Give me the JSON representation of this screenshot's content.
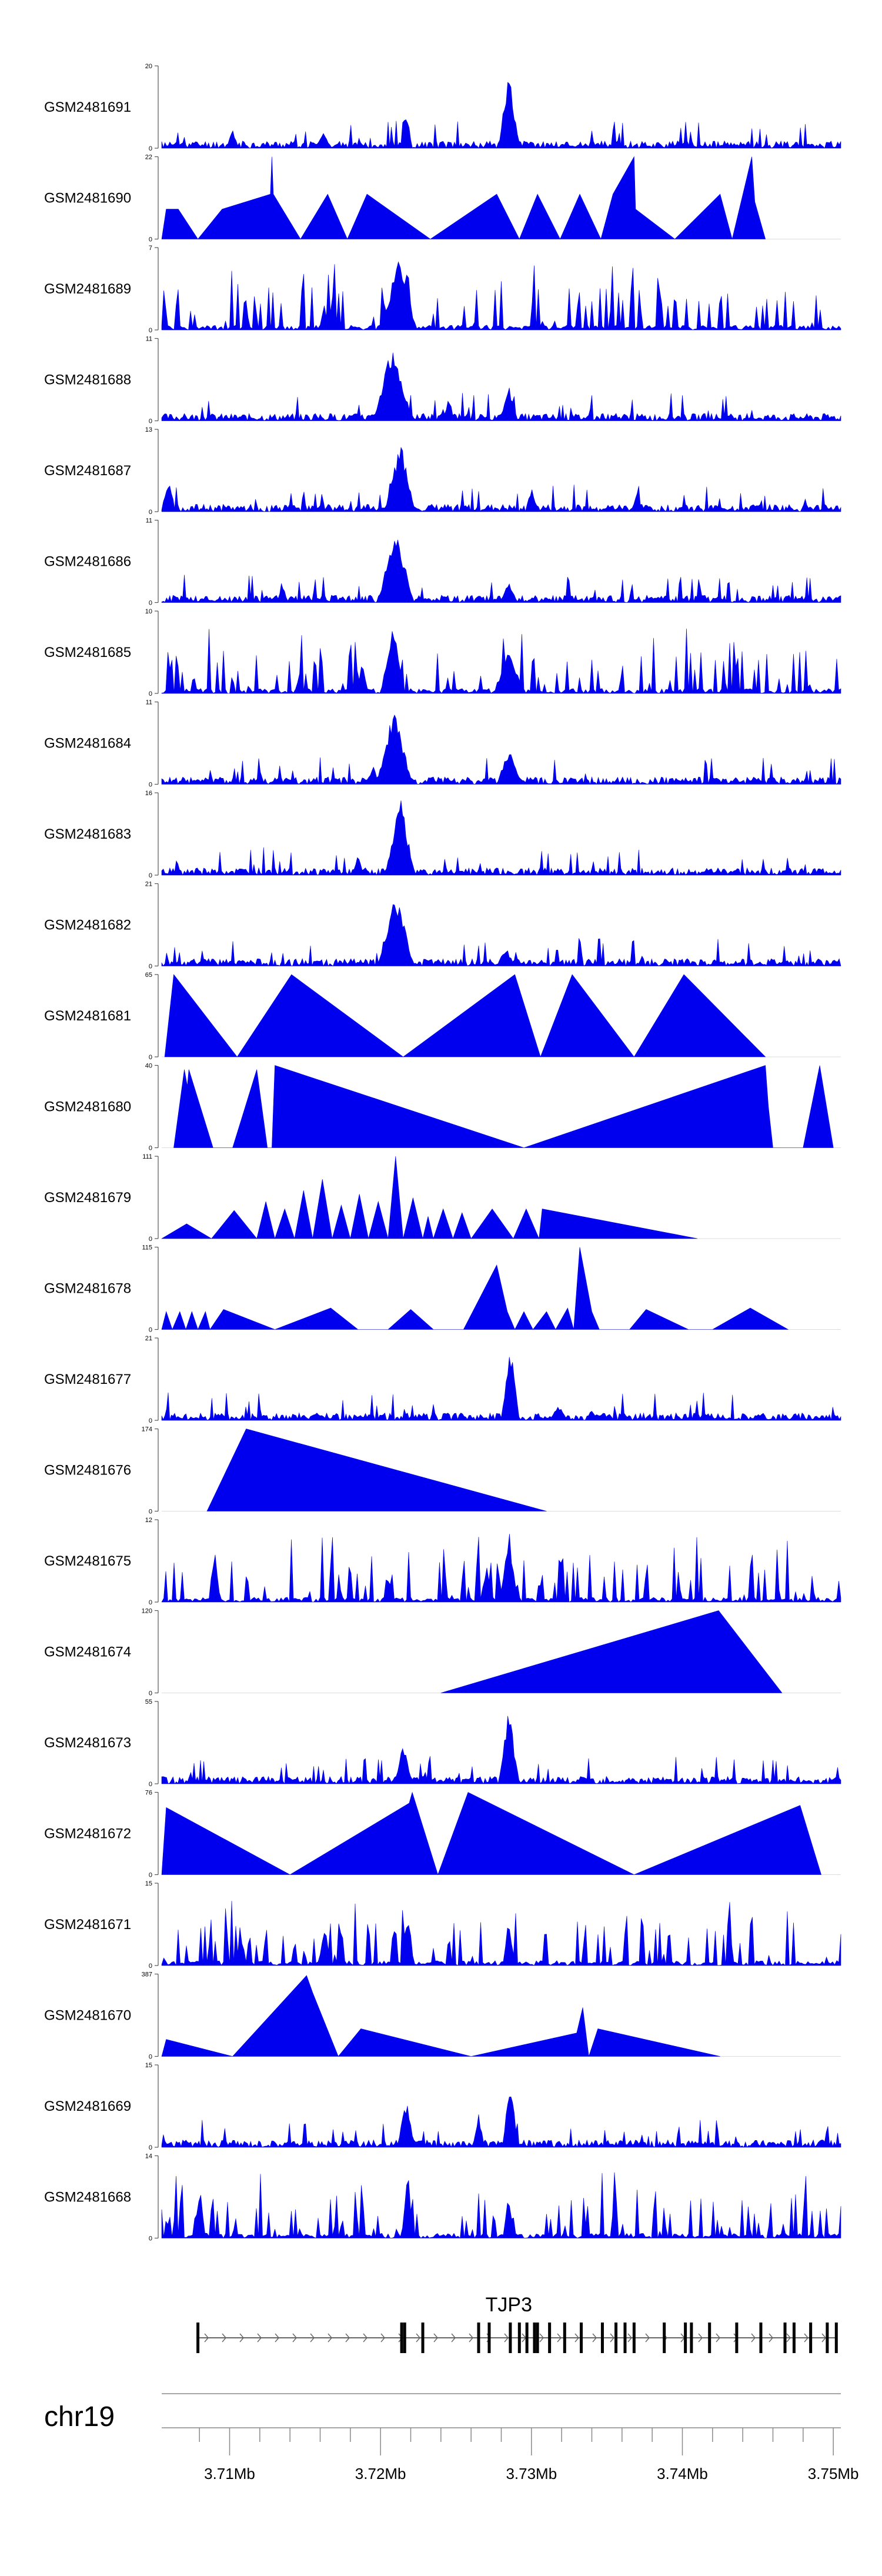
{
  "chart_data": {
    "type": "area",
    "chromosome": "chr19",
    "fill_color": "#0000ee",
    "axis_color": "#555555",
    "x_range_mb": [
      3.7055,
      3.7505
    ],
    "x_ticks_major": [
      3.71,
      3.72,
      3.73,
      3.74,
      3.75
    ],
    "x_tick_labels": [
      "3.71Mb",
      "3.72Mb",
      "3.73Mb",
      "3.74Mb",
      "3.75Mb"
    ],
    "x_ticks_minor": [
      3.708,
      3.712,
      3.714,
      3.716,
      3.718,
      3.722,
      3.724,
      3.726,
      3.728,
      3.732,
      3.734,
      3.736,
      3.738,
      3.742,
      3.744,
      3.746,
      3.748
    ],
    "gene": {
      "name": "TJP3",
      "start_mb": 3.7078,
      "end_mb": 3.7502,
      "strand": "+",
      "exons_mb": [
        3.7079,
        3.7214,
        3.7216,
        3.7228,
        3.7265,
        3.7272,
        3.7286,
        3.7292,
        3.7297,
        3.7302,
        3.7304,
        3.7312,
        3.7322,
        3.7333,
        3.7347,
        3.7356,
        3.7362,
        3.7368,
        3.7388,
        3.7402,
        3.7406,
        3.7418,
        3.7436,
        3.7452,
        3.7468,
        3.7474,
        3.7485,
        3.7496,
        3.7502
      ]
    },
    "series": [
      {
        "name": "GSM2481691",
        "ymax": 20,
        "style": "dense",
        "seed": 11,
        "peaks": [
          [
            3.7285,
            19,
            0.0007
          ],
          [
            3.7217,
            10,
            0.0004
          ],
          [
            3.7102,
            5,
            0.0004
          ],
          [
            3.7162,
            4,
            0.0006
          ]
        ]
      },
      {
        "name": "GSM2481690",
        "ymax": 22,
        "style": "sparse",
        "seed": 12,
        "points": [
          [
            3.7055,
            0
          ],
          [
            3.7058,
            8
          ],
          [
            3.7066,
            8
          ],
          [
            3.7079,
            0
          ],
          [
            3.7095,
            8
          ],
          [
            3.7127,
            12
          ],
          [
            3.7128,
            22
          ],
          [
            3.7129,
            12
          ],
          [
            3.7135,
            8
          ],
          [
            3.7147,
            0
          ],
          [
            3.7165,
            12
          ],
          [
            3.7178,
            0
          ],
          [
            3.7191,
            12
          ],
          [
            3.7233,
            0
          ],
          [
            3.7277,
            12
          ],
          [
            3.7292,
            0
          ],
          [
            3.7304,
            12
          ],
          [
            3.7319,
            0
          ],
          [
            3.7332,
            12
          ],
          [
            3.7346,
            0
          ],
          [
            3.7354,
            12
          ],
          [
            3.7368,
            22
          ],
          [
            3.7369,
            8
          ],
          [
            3.7395,
            0
          ],
          [
            3.7425,
            12
          ],
          [
            3.7433,
            0
          ],
          [
            3.7446,
            22
          ],
          [
            3.7448,
            10
          ],
          [
            3.7455,
            0
          ]
        ]
      },
      {
        "name": "GSM2481689",
        "ymax": 7,
        "style": "spiky",
        "seed": 13,
        "peaks": [
          [
            3.7212,
            6.5,
            0.0012
          ],
          [
            3.7168,
            3,
            0.0004
          ]
        ]
      },
      {
        "name": "GSM2481688",
        "ymax": 11,
        "style": "dense",
        "seed": 14,
        "peaks": [
          [
            3.7208,
            10.5,
            0.0013
          ],
          [
            3.7285,
            5,
            0.0006
          ],
          [
            3.7245,
            3,
            0.0004
          ]
        ]
      },
      {
        "name": "GSM2481687",
        "ymax": 13,
        "style": "dense",
        "seed": 15,
        "peaks": [
          [
            3.7213,
            12,
            0.001
          ],
          [
            3.706,
            6,
            0.0004
          ],
          [
            3.73,
            4,
            0.0004
          ],
          [
            3.737,
            3,
            0.0004
          ]
        ]
      },
      {
        "name": "GSM2481686",
        "ymax": 11,
        "style": "dense",
        "seed": 16,
        "peaks": [
          [
            3.721,
            10.5,
            0.0012
          ],
          [
            3.7285,
            3,
            0.0006
          ],
          [
            3.7135,
            2.5,
            0.0004
          ]
        ]
      },
      {
        "name": "GSM2481685",
        "ymax": 10,
        "style": "spiky",
        "seed": 17,
        "peaks": [
          [
            3.7208,
            9.5,
            0.0008
          ],
          [
            3.7285,
            5.5,
            0.001
          ],
          [
            3.7188,
            4,
            0.0004
          ]
        ]
      },
      {
        "name": "GSM2481684",
        "ymax": 11,
        "style": "dense",
        "seed": 18,
        "peaks": [
          [
            3.7209,
            10.5,
            0.0012
          ],
          [
            3.7285,
            5,
            0.0008
          ],
          [
            3.7195,
            3,
            0.0004
          ]
        ]
      },
      {
        "name": "GSM2481683",
        "ymax": 16,
        "style": "dense",
        "seed": 19,
        "peaks": [
          [
            3.7213,
            15.5,
            0.001
          ],
          [
            3.7185,
            4,
            0.0004
          ]
        ]
      },
      {
        "name": "GSM2481682",
        "ymax": 21,
        "style": "dense",
        "seed": 20,
        "peaks": [
          [
            3.721,
            20,
            0.0012
          ],
          [
            3.7283,
            5,
            0.0006
          ]
        ]
      },
      {
        "name": "GSM2481681",
        "ymax": 65,
        "style": "sparse",
        "seed": 21,
        "points": [
          [
            3.7057,
            0
          ],
          [
            3.7063,
            65
          ],
          [
            3.7105,
            0
          ],
          [
            3.7141,
            65
          ],
          [
            3.7215,
            0
          ],
          [
            3.7289,
            65
          ],
          [
            3.7306,
            0
          ],
          [
            3.7327,
            65
          ],
          [
            3.7368,
            0
          ],
          [
            3.7401,
            65
          ],
          [
            3.7455,
            0
          ]
        ]
      },
      {
        "name": "GSM2481680",
        "ymax": 40,
        "style": "sparse",
        "seed": 22,
        "points": [
          [
            3.7063,
            0
          ],
          [
            3.707,
            38
          ],
          [
            3.7072,
            30
          ],
          [
            3.7073,
            38
          ],
          [
            3.7089,
            0
          ],
          [
            3.7102,
            0
          ],
          [
            3.7118,
            38
          ],
          [
            3.7125,
            0
          ],
          [
            3.7128,
            0
          ],
          [
            3.713,
            40
          ],
          [
            3.7295,
            0
          ],
          [
            3.7455,
            40
          ],
          [
            3.7457,
            20
          ],
          [
            3.746,
            0
          ],
          [
            3.748,
            0
          ],
          [
            3.7491,
            40
          ],
          [
            3.75,
            0
          ]
        ]
      },
      {
        "name": "GSM2481679",
        "ymax": 111,
        "style": "triangles",
        "seed": 23,
        "bases": [
          [
            3.7055,
            3.7088,
            20
          ],
          [
            3.7088,
            3.7118,
            38
          ],
          [
            3.7118,
            3.713,
            50
          ],
          [
            3.713,
            3.7143,
            40
          ],
          [
            3.7143,
            3.7155,
            65
          ],
          [
            3.7155,
            3.7168,
            80
          ],
          [
            3.7168,
            3.718,
            45
          ],
          [
            3.718,
            3.7192,
            60
          ],
          [
            3.7192,
            3.7205,
            50
          ],
          [
            3.7205,
            3.7215,
            111
          ],
          [
            3.7215,
            3.7228,
            55
          ],
          [
            3.7228,
            3.7235,
            30
          ],
          [
            3.7235,
            3.7248,
            40
          ],
          [
            3.7248,
            3.726,
            35
          ],
          [
            3.726,
            3.7288,
            40
          ],
          [
            3.7288,
            3.7305,
            40
          ],
          [
            3.7305,
            3.741,
            40,
            "left"
          ]
        ]
      },
      {
        "name": "GSM2481678",
        "ymax": 115,
        "style": "sparse",
        "seed": 24,
        "points": [
          [
            3.7055,
            0
          ],
          [
            3.7058,
            25
          ],
          [
            3.7062,
            0
          ],
          [
            3.7067,
            25
          ],
          [
            3.7071,
            0
          ],
          [
            3.7075,
            25
          ],
          [
            3.7079,
            0
          ],
          [
            3.7084,
            25
          ],
          [
            3.7087,
            0
          ],
          [
            3.7096,
            28
          ],
          [
            3.713,
            0
          ],
          [
            3.7167,
            30
          ],
          [
            3.7185,
            0
          ],
          [
            3.7205,
            0
          ],
          [
            3.722,
            28
          ],
          [
            3.7235,
            0
          ],
          [
            3.7255,
            0
          ],
          [
            3.7277,
            90
          ],
          [
            3.7284,
            25
          ],
          [
            3.7289,
            0
          ],
          [
            3.7295,
            25
          ],
          [
            3.7301,
            0
          ],
          [
            3.731,
            25
          ],
          [
            3.7316,
            0
          ],
          [
            3.7324,
            30
          ],
          [
            3.7328,
            0
          ],
          [
            3.7332,
            115
          ],
          [
            3.734,
            25
          ],
          [
            3.7345,
            0
          ],
          [
            3.7365,
            0
          ],
          [
            3.7376,
            28
          ],
          [
            3.7404,
            0
          ],
          [
            3.742,
            0
          ],
          [
            3.7445,
            30
          ],
          [
            3.747,
            0
          ]
        ]
      },
      {
        "name": "GSM2481677",
        "ymax": 21,
        "style": "dense",
        "seed": 25,
        "peaks": [
          [
            3.7286,
            20,
            0.0006
          ],
          [
            3.7318,
            4,
            0.0006
          ],
          [
            3.734,
            3,
            0.0004
          ]
        ]
      },
      {
        "name": "GSM2481676",
        "ymax": 174,
        "style": "sparse",
        "seed": 26,
        "points": [
          [
            3.7085,
            0
          ],
          [
            3.7111,
            174
          ],
          [
            3.731,
            0
          ]
        ]
      },
      {
        "name": "GSM2481675",
        "ymax": 12,
        "style": "spiky",
        "seed": 27,
        "peaks": [
          [
            3.7285,
            11,
            0.0006
          ],
          [
            3.709,
            8,
            0.0004
          ],
          [
            3.727,
            6,
            0.0004
          ]
        ]
      },
      {
        "name": "GSM2481674",
        "ymax": 120,
        "style": "sparse",
        "seed": 28,
        "points": [
          [
            3.724,
            0
          ],
          [
            3.7424,
            120
          ],
          [
            3.7466,
            0
          ]
        ]
      },
      {
        "name": "GSM2481673",
        "ymax": 55,
        "style": "dense",
        "seed": 29,
        "peaks": [
          [
            3.7285,
            52,
            0.0007
          ],
          [
            3.7215,
            28,
            0.0006
          ]
        ]
      },
      {
        "name": "GSM2481672",
        "ymax": 76,
        "style": "sparse",
        "seed": 30,
        "points": [
          [
            3.7055,
            0
          ],
          [
            3.7058,
            62
          ],
          [
            3.714,
            0
          ],
          [
            3.7219,
            66
          ],
          [
            3.7221,
            76
          ],
          [
            3.7238,
            0
          ],
          [
            3.7258,
            76
          ],
          [
            3.7368,
            0
          ],
          [
            3.7478,
            64
          ],
          [
            3.7492,
            0
          ]
        ]
      },
      {
        "name": "GSM2481671",
        "ymax": 15,
        "style": "spiky",
        "seed": 31,
        "peaks": [
          [
            3.7218,
            12,
            0.0004
          ],
          [
            3.7163,
            9,
            0.0004
          ],
          [
            3.7285,
            10,
            0.0004
          ]
        ]
      },
      {
        "name": "GSM2481670",
        "ymax": 387,
        "style": "sparse",
        "seed": 32,
        "points": [
          [
            3.7055,
            0
          ],
          [
            3.7058,
            80
          ],
          [
            3.7102,
            0
          ],
          [
            3.7151,
            380
          ],
          [
            3.7155,
            300
          ],
          [
            3.7172,
            0
          ],
          [
            3.7187,
            130
          ],
          [
            3.726,
            0
          ],
          [
            3.733,
            110
          ],
          [
            3.7334,
            230
          ],
          [
            3.7338,
            0
          ],
          [
            3.7344,
            130
          ],
          [
            3.7425,
            0
          ]
        ]
      },
      {
        "name": "GSM2481669",
        "ymax": 15,
        "style": "dense",
        "seed": 33,
        "peaks": [
          [
            3.7286,
            14,
            0.0005
          ],
          [
            3.7217,
            9,
            0.0006
          ],
          [
            3.7265,
            6,
            0.0004
          ]
        ]
      },
      {
        "name": "GSM2481668",
        "ymax": 14,
        "style": "spiky",
        "seed": 34,
        "peaks": [
          [
            3.7218,
            13,
            0.0004
          ],
          [
            3.708,
            10,
            0.0004
          ],
          [
            3.7285,
            8,
            0.0004
          ]
        ]
      }
    ]
  }
}
